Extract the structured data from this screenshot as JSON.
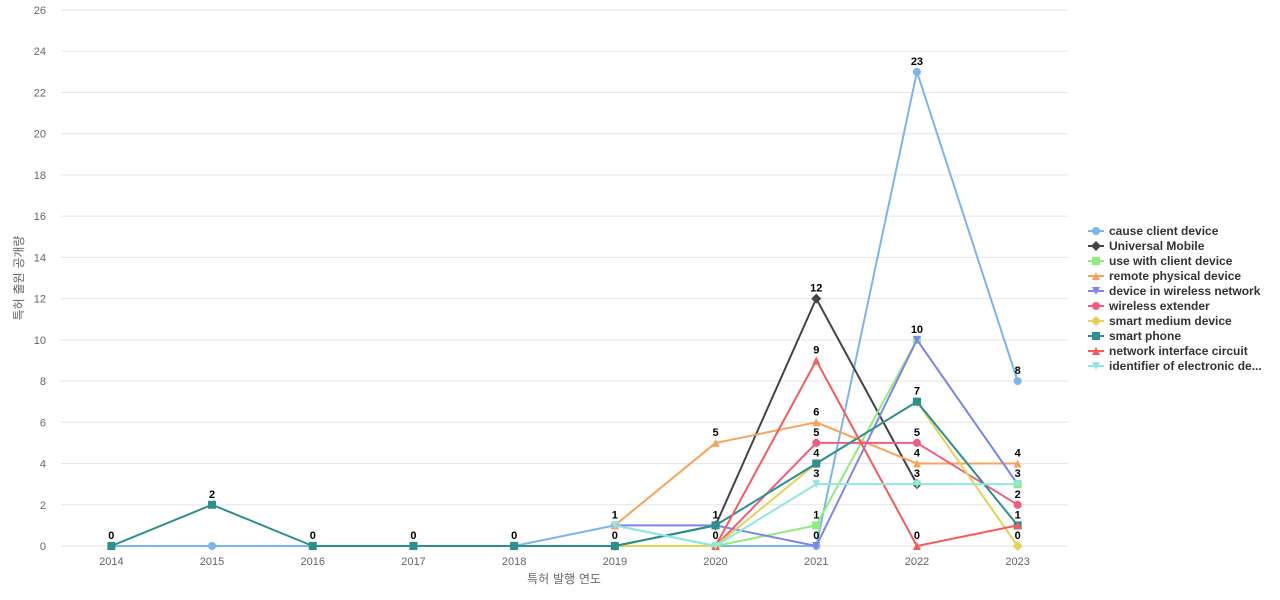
{
  "chart_data": {
    "type": "line",
    "title": "",
    "xlabel": "특허 발행 연도",
    "ylabel": "특허 출원 공개량",
    "x": [
      "2014",
      "2015",
      "2016",
      "2017",
      "2018",
      "2019",
      "2020",
      "2021",
      "2022",
      "2023"
    ],
    "ylim": [
      0,
      26
    ],
    "yticks": [
      0,
      2,
      4,
      6,
      8,
      10,
      12,
      14,
      16,
      18,
      20,
      22,
      24,
      26
    ],
    "grid": true,
    "legend_position": "right",
    "series": [
      {
        "name": "cause client device",
        "color": "#7cb5ec",
        "marker": "circle",
        "values": [
          0,
          0,
          0,
          0,
          0,
          1,
          0,
          0,
          23,
          8
        ]
      },
      {
        "name": "Universal Mobile",
        "color": "#434348",
        "marker": "diamond",
        "values": [
          null,
          null,
          null,
          null,
          null,
          0,
          1,
          12,
          3,
          null
        ]
      },
      {
        "name": "use with client device",
        "color": "#90ed7d",
        "marker": "square",
        "values": [
          null,
          null,
          null,
          null,
          null,
          0,
          0,
          1,
          10,
          3
        ]
      },
      {
        "name": "remote physical device",
        "color": "#f7a35c",
        "marker": "triangle",
        "values": [
          null,
          null,
          null,
          null,
          null,
          1,
          5,
          6,
          4,
          4
        ]
      },
      {
        "name": "device in wireless network",
        "color": "#8085e9",
        "marker": "triangle-down",
        "values": [
          null,
          null,
          null,
          null,
          null,
          1,
          1,
          0,
          10,
          3
        ]
      },
      {
        "name": "wireless extender",
        "color": "#f15c80",
        "marker": "circle",
        "values": [
          null,
          null,
          null,
          null,
          null,
          null,
          0,
          5,
          5,
          2
        ]
      },
      {
        "name": "smart medium device",
        "color": "#e4d354",
        "marker": "diamond",
        "values": [
          null,
          null,
          null,
          null,
          null,
          0,
          0,
          4,
          7,
          0
        ]
      },
      {
        "name": "smart phone",
        "color": "#2b908f",
        "marker": "square",
        "values": [
          0,
          2,
          0,
          0,
          0,
          0,
          1,
          4,
          7,
          1
        ]
      },
      {
        "name": "network interface circuit",
        "color": "#f45b5b",
        "marker": "triangle",
        "values": [
          null,
          null,
          null,
          null,
          null,
          null,
          0,
          9,
          0,
          1
        ]
      },
      {
        "name": "identifier of electronic de...",
        "color": "#91e8e1",
        "marker": "triangle-down",
        "values": [
          null,
          null,
          null,
          null,
          null,
          1,
          0,
          3,
          3,
          3
        ]
      }
    ],
    "data_labels": [
      {
        "x": "2014",
        "value": 0
      },
      {
        "x": "2015",
        "value": 2
      },
      {
        "x": "2016",
        "value": 0
      },
      {
        "x": "2017",
        "value": 0
      },
      {
        "x": "2018",
        "value": 0
      },
      {
        "x": "2019",
        "value": 1
      },
      {
        "x": "2019",
        "value": 0
      },
      {
        "x": "2020",
        "value": 5
      },
      {
        "x": "2020",
        "value": 1
      },
      {
        "x": "2020",
        "value": 0
      },
      {
        "x": "2021",
        "value": 12
      },
      {
        "x": "2021",
        "value": 9
      },
      {
        "x": "2021",
        "value": 6
      },
      {
        "x": "2021",
        "value": 5
      },
      {
        "x": "2021",
        "value": 4
      },
      {
        "x": "2021",
        "value": 3
      },
      {
        "x": "2021",
        "value": 1
      },
      {
        "x": "2021",
        "value": 0
      },
      {
        "x": "2022",
        "value": 23
      },
      {
        "x": "2022",
        "value": 10
      },
      {
        "x": "2022",
        "value": 7
      },
      {
        "x": "2022",
        "value": 5
      },
      {
        "x": "2022",
        "value": 4
      },
      {
        "x": "2022",
        "value": 3
      },
      {
        "x": "2022",
        "value": 0
      },
      {
        "x": "2023",
        "value": 8
      },
      {
        "x": "2023",
        "value": 4
      },
      {
        "x": "2023",
        "value": 3
      },
      {
        "x": "2023",
        "value": 2
      },
      {
        "x": "2023",
        "value": 1
      },
      {
        "x": "2023",
        "value": 0
      }
    ]
  }
}
